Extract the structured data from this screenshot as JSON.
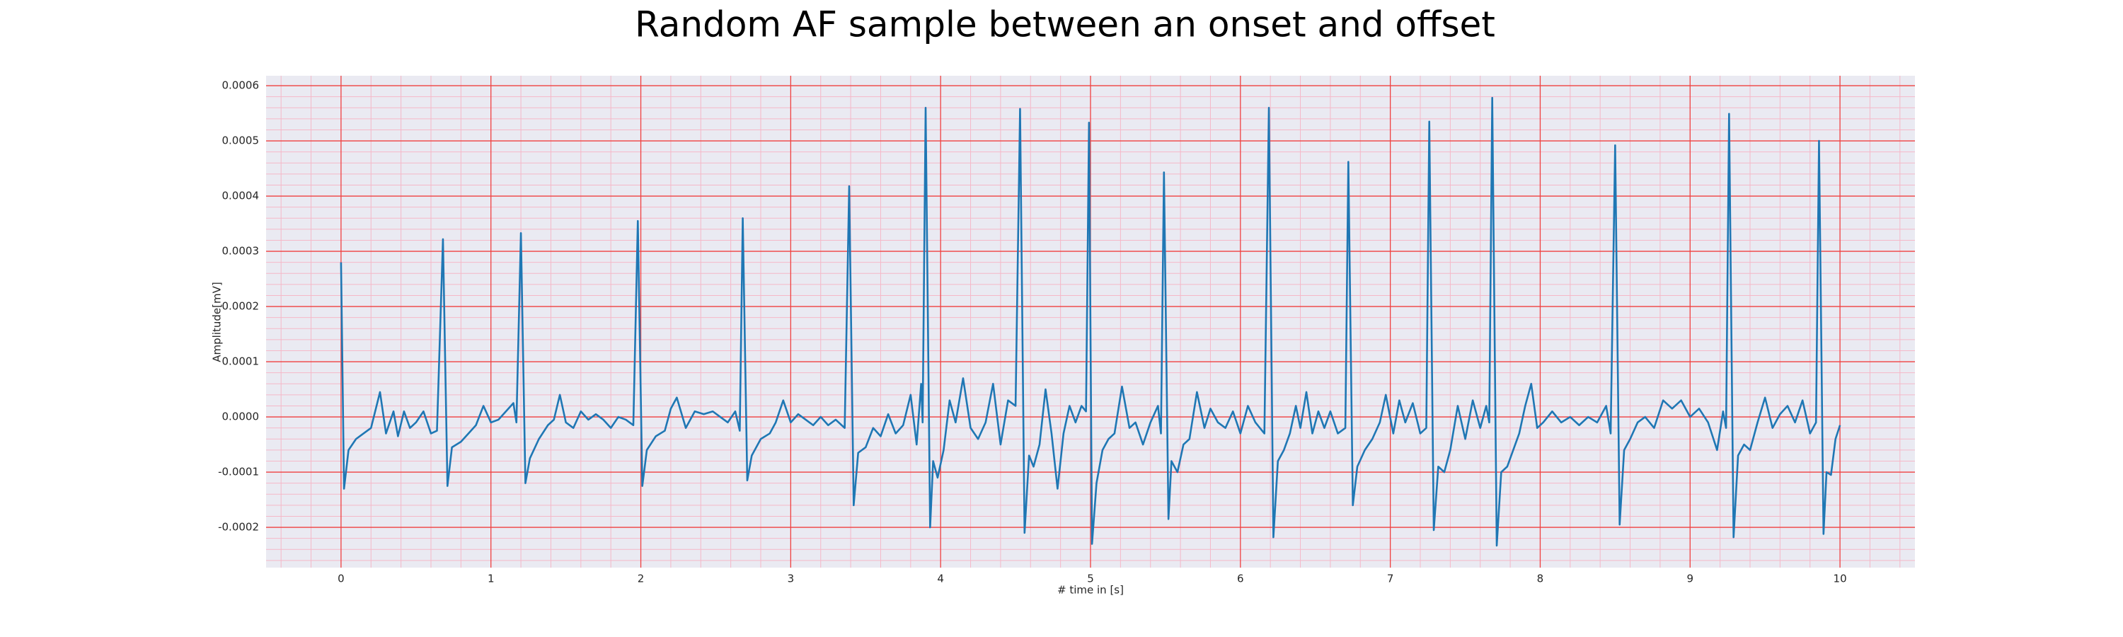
{
  "chart_data": {
    "type": "line",
    "title": "Random AF sample between an onset and offset",
    "x_label": "# time in [s]",
    "y_label": "Amplitude[mV]",
    "color": "#1f77b4",
    "grid": true,
    "minor_grid": true,
    "xlim": [
      -0.5,
      10.5
    ],
    "ylim": [
      -0.000273,
      0.000618
    ],
    "xticks": [
      0,
      1,
      2,
      3,
      4,
      5,
      6,
      7,
      8,
      9,
      10
    ],
    "yticks": [
      -0.0002,
      -0.0001,
      {
        "value": 0,
        "label": "0.0000"
      },
      0.0001,
      0.0002,
      0.0003,
      0.0004,
      0.0005,
      0.0006
    ],
    "x": [
      0,
      0.02,
      0.05,
      0.1,
      0.15,
      0.2,
      0.26,
      0.3,
      0.35,
      0.38,
      0.42,
      0.46,
      0.5,
      0.55,
      0.6,
      0.64,
      0.68,
      0.71,
      0.74,
      0.8,
      0.85,
      0.9,
      0.95,
      1.0,
      1.05,
      1.1,
      1.15,
      1.17,
      1.2,
      1.23,
      1.26,
      1.32,
      1.38,
      1.42,
      1.46,
      1.5,
      1.55,
      1.6,
      1.65,
      1.7,
      1.75,
      1.8,
      1.85,
      1.9,
      1.95,
      1.98,
      2.01,
      2.04,
      2.1,
      2.16,
      2.2,
      2.24,
      2.3,
      2.36,
      2.42,
      2.48,
      2.53,
      2.58,
      2.63,
      2.66,
      2.68,
      2.71,
      2.74,
      2.8,
      2.86,
      2.9,
      2.95,
      3.0,
      3.05,
      3.1,
      3.15,
      3.2,
      3.25,
      3.3,
      3.36,
      3.39,
      3.42,
      3.45,
      3.5,
      3.55,
      3.6,
      3.65,
      3.7,
      3.75,
      3.8,
      3.84,
      3.87,
      3.88,
      3.9,
      3.93,
      3.95,
      3.98,
      4.02,
      4.06,
      4.1,
      4.15,
      4.2,
      4.25,
      4.3,
      4.35,
      4.4,
      4.45,
      4.5,
      4.53,
      4.56,
      4.59,
      4.62,
      4.66,
      4.7,
      4.74,
      4.78,
      4.82,
      4.86,
      4.9,
      4.94,
      4.97,
      4.99,
      5.01,
      5.04,
      5.08,
      5.12,
      5.16,
      5.21,
      5.26,
      5.3,
      5.35,
      5.4,
      5.45,
      5.47,
      5.49,
      5.52,
      5.54,
      5.58,
      5.62,
      5.66,
      5.71,
      5.76,
      5.8,
      5.85,
      5.9,
      5.95,
      6.0,
      6.05,
      6.1,
      6.16,
      6.19,
      6.22,
      6.25,
      6.29,
      6.33,
      6.37,
      6.4,
      6.44,
      6.48,
      6.52,
      6.56,
      6.6,
      6.65,
      6.7,
      6.72,
      6.75,
      6.78,
      6.83,
      6.88,
      6.93,
      6.97,
      7.02,
      7.06,
      7.1,
      7.15,
      7.2,
      7.24,
      7.26,
      7.29,
      7.32,
      7.36,
      7.4,
      7.45,
      7.5,
      7.55,
      7.6,
      7.64,
      7.66,
      7.68,
      7.71,
      7.74,
      7.78,
      7.82,
      7.86,
      7.9,
      7.94,
      7.98,
      8.02,
      8.08,
      8.14,
      8.2,
      8.26,
      8.32,
      8.38,
      8.44,
      8.47,
      8.5,
      8.53,
      8.56,
      8.6,
      8.65,
      8.7,
      8.76,
      8.82,
      8.88,
      8.94,
      9.0,
      9.06,
      9.12,
      9.18,
      9.22,
      9.24,
      9.26,
      9.29,
      9.32,
      9.36,
      9.4,
      9.45,
      9.5,
      9.55,
      9.6,
      9.65,
      9.7,
      9.75,
      9.8,
      9.84,
      9.86,
      9.89,
      9.91,
      9.94,
      9.97,
      10.0
    ],
    "values": [
      0.00028,
      -0.00013,
      -6e-05,
      -4e-05,
      -3e-05,
      -2e-05,
      4.5e-05,
      -3e-05,
      1e-05,
      -3.5e-05,
      1e-05,
      -2e-05,
      -1e-05,
      1e-05,
      -3e-05,
      -2.5e-05,
      0.000322,
      -0.000125,
      -5.5e-05,
      -4.5e-05,
      -3e-05,
      -1.5e-05,
      2e-05,
      -1e-05,
      -5e-06,
      1e-05,
      2.5e-05,
      -1e-05,
      0.000333,
      -0.00012,
      -7.5e-05,
      -4e-05,
      -1.5e-05,
      -5e-06,
      4e-05,
      -1e-05,
      -2e-05,
      1e-05,
      -5e-06,
      5e-06,
      -5e-06,
      -2e-05,
      0,
      -5e-06,
      -1.5e-05,
      0.000355,
      -0.000125,
      -6e-05,
      -3.5e-05,
      -2.5e-05,
      1.5e-05,
      3.5e-05,
      -2e-05,
      1e-05,
      5e-06,
      1e-05,
      0,
      -1e-05,
      1e-05,
      -2.5e-05,
      0.00036,
      -0.000115,
      -7e-05,
      -4e-05,
      -3e-05,
      -1e-05,
      3e-05,
      -1e-05,
      5e-06,
      -5e-06,
      -1.5e-05,
      0,
      -1.5e-05,
      -5e-06,
      -2e-05,
      0.000418,
      -0.00016,
      -6.5e-05,
      -5.5e-05,
      -2e-05,
      -3.5e-05,
      5e-06,
      -3e-05,
      -1.5e-05,
      4e-05,
      -5e-05,
      6e-05,
      -1e-05,
      0.00056,
      -0.0002,
      -8e-05,
      -0.00011,
      -6e-05,
      3e-05,
      -1e-05,
      7e-05,
      -2e-05,
      -4e-05,
      -1e-05,
      6e-05,
      -5e-05,
      3e-05,
      2e-05,
      0.000558,
      -0.00021,
      -7e-05,
      -9e-05,
      -5e-05,
      5e-05,
      -3e-05,
      -0.00013,
      -3e-05,
      2e-05,
      -1e-05,
      2e-05,
      1e-05,
      0.000533,
      -0.00023,
      -0.00012,
      -6e-05,
      -4e-05,
      -3e-05,
      5.5e-05,
      -2e-05,
      -1e-05,
      -5e-05,
      -1e-05,
      2e-05,
      -3e-05,
      0.000443,
      -0.000185,
      -8e-05,
      -0.0001,
      -5e-05,
      -4e-05,
      4.5e-05,
      -2e-05,
      1.5e-05,
      -1e-05,
      -2e-05,
      1e-05,
      -3e-05,
      2e-05,
      -1e-05,
      -3e-05,
      0.00056,
      -0.000218,
      -8e-05,
      -6e-05,
      -3e-05,
      2e-05,
      -2e-05,
      4.5e-05,
      -3e-05,
      1e-05,
      -2e-05,
      1e-05,
      -3e-05,
      -2e-05,
      0.000462,
      -0.00016,
      -9e-05,
      -6e-05,
      -4e-05,
      -1e-05,
      4e-05,
      -3e-05,
      3e-05,
      -1e-05,
      2.5e-05,
      -3e-05,
      -2e-05,
      0.000535,
      -0.000205,
      -9e-05,
      -0.0001,
      -6e-05,
      2e-05,
      -4e-05,
      3e-05,
      -2e-05,
      2e-05,
      -1e-05,
      0.000578,
      -0.000233,
      -0.0001,
      -9e-05,
      -6e-05,
      -3e-05,
      2e-05,
      6e-05,
      -2e-05,
      -1e-05,
      1e-05,
      -1e-05,
      0,
      -1.5e-05,
      0,
      -1e-05,
      2e-05,
      -3e-05,
      0.000492,
      -0.000195,
      -6e-05,
      -4e-05,
      -1e-05,
      0,
      -2e-05,
      3e-05,
      1.5e-05,
      3e-05,
      0,
      1.5e-05,
      -1e-05,
      -6e-05,
      1e-05,
      -2e-05,
      0.000549,
      -0.000218,
      -7e-05,
      -5e-05,
      -6e-05,
      -1e-05,
      3.5e-05,
      -2e-05,
      5e-06,
      2e-05,
      -1e-05,
      3e-05,
      -3e-05,
      -1e-05,
      0.0005,
      -0.000212,
      -0.0001,
      -0.000105,
      -4e-05,
      -1.5e-05
    ]
  }
}
